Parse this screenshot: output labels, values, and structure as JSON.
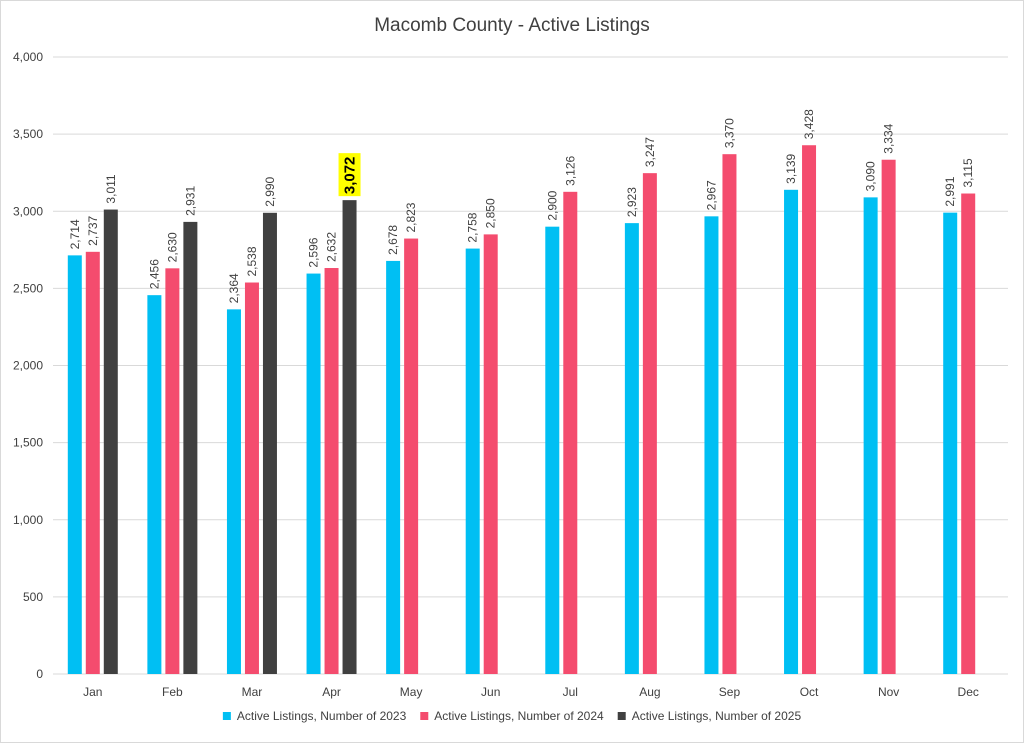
{
  "chart_data": {
    "type": "bar",
    "title": "Macomb County - Active Listings",
    "xlabel": "",
    "ylabel": "",
    "ylim": [
      0,
      4000
    ],
    "yticks": [
      0,
      500,
      1000,
      1500,
      2000,
      2500,
      3000,
      3500,
      4000
    ],
    "ytick_labels": [
      "0",
      "500",
      "1,000",
      "1,500",
      "2,000",
      "2,500",
      "3,000",
      "3,500",
      "4,000"
    ],
    "categories": [
      "Jan",
      "Feb",
      "Mar",
      "Apr",
      "May",
      "Jun",
      "Jul",
      "Aug",
      "Sep",
      "Oct",
      "Nov",
      "Dec"
    ],
    "series": [
      {
        "name": "Active Listings, Number of 2023",
        "color": "#00BFF3",
        "values": [
          2714,
          2456,
          2364,
          2596,
          2678,
          2758,
          2900,
          2923,
          2967,
          3139,
          3090,
          2991
        ],
        "labels": [
          "2,714",
          "2,456",
          "2,364",
          "2,596",
          "2,678",
          "2,758",
          "2,900",
          "2,923",
          "2,967",
          "3,139",
          "3,090",
          "2,991"
        ]
      },
      {
        "name": "Active Listings, Number of 2024",
        "color": "#F44C6E",
        "values": [
          2737,
          2630,
          2538,
          2632,
          2823,
          2850,
          3126,
          3247,
          3370,
          3428,
          3334,
          3115
        ],
        "labels": [
          "2,737",
          "2,630",
          "2,538",
          "2,632",
          "2,823",
          "2,850",
          "3,126",
          "3,247",
          "3,370",
          "3,428",
          "3,334",
          "3,115"
        ]
      },
      {
        "name": "Active Listings, Number of 2025",
        "color": "#404040",
        "values": [
          3011,
          2931,
          2990,
          3072,
          null,
          null,
          null,
          null,
          null,
          null,
          null,
          null
        ],
        "labels": [
          "3,011",
          "2,931",
          "2,990",
          "3,072",
          null,
          null,
          null,
          null,
          null,
          null,
          null,
          null
        ]
      }
    ],
    "highlight": {
      "series": 2,
      "index": 3,
      "background": "#FFFF00"
    },
    "grid": true,
    "legend_position": "bottom"
  }
}
